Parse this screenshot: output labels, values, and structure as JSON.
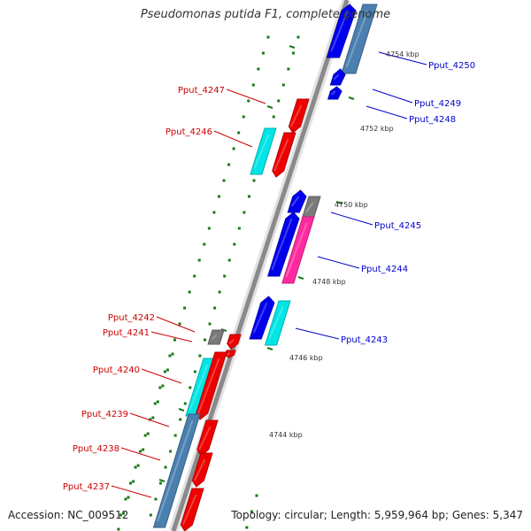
{
  "title": "Pseudomonas putida F1, complete genome",
  "footer": {
    "accession": "Accession: NC_009512",
    "summary": "Topology: circular; Length: 5,959,964 bp; Genes: 5,347"
  },
  "colors": {
    "background": "#ffffff",
    "backbone": "#8a8a8a",
    "forward_gene": "#0000ee",
    "reverse_gene": "#ee0000",
    "cyan_gene": "#00e5e5",
    "steelblue_gene": "#4a7fb0",
    "magenta_gene": "#ff2aa0",
    "grey_gene": "#7a7a7a",
    "minor_tick": "#1a7a1a",
    "label_forward": "#0000cc",
    "label_reverse": "#cc0000"
  },
  "ticks": [
    "4754 kbp",
    "4752 kbp",
    "4750 kbp",
    "4748 kbp",
    "4746 kbp",
    "4744 kbp"
  ],
  "labels_right": [
    "Pput_4250",
    "Pput_4249",
    "Pput_4248",
    "Pput_4245",
    "Pput_4244",
    "Pput_4243"
  ],
  "labels_left": [
    "Pput_4247",
    "Pput_4246",
    "Pput_4242",
    "Pput_4241",
    "Pput_4240",
    "Pput_4239",
    "Pput_4238",
    "Pput_4237"
  ]
}
